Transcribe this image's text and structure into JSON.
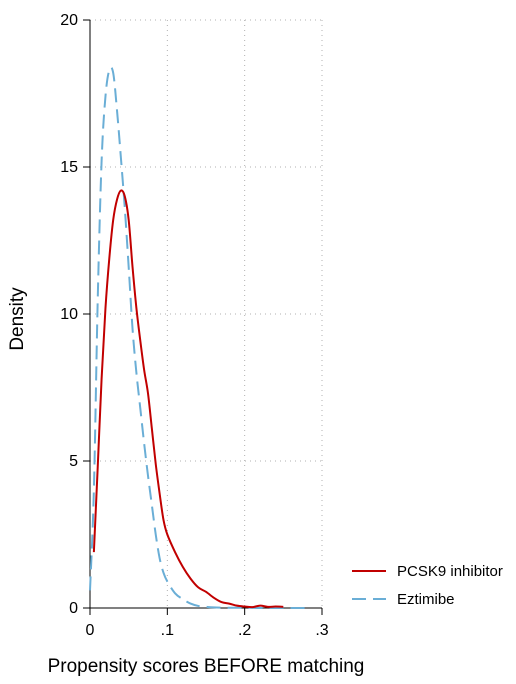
{
  "chart_data": {
    "type": "line",
    "title": "",
    "xlabel": "Propensity scores BEFORE matching",
    "ylabel": "Density",
    "xlim": [
      0,
      0.3
    ],
    "ylim": [
      0,
      20
    ],
    "x_ticks": [
      {
        "value": 0,
        "label": "0"
      },
      {
        "value": 0.1,
        "label": ".1"
      },
      {
        "value": 0.2,
        "label": ".2"
      },
      {
        "value": 0.3,
        "label": ".3"
      }
    ],
    "y_ticks": [
      {
        "value": 0,
        "label": "0"
      },
      {
        "value": 5,
        "label": "5"
      },
      {
        "value": 10,
        "label": "10"
      },
      {
        "value": 15,
        "label": "15"
      },
      {
        "value": 20,
        "label": "20"
      }
    ],
    "grid": true,
    "legend_position": "bottom-right",
    "series": [
      {
        "name": "PCSK9 inhibitor",
        "color": "#c10000",
        "style": "solid",
        "x": [
          0.005,
          0.01,
          0.015,
          0.02,
          0.025,
          0.03,
          0.035,
          0.04,
          0.045,
          0.05,
          0.055,
          0.06,
          0.065,
          0.07,
          0.075,
          0.08,
          0.085,
          0.09,
          0.095,
          0.1,
          0.11,
          0.12,
          0.13,
          0.14,
          0.15,
          0.16,
          0.17,
          0.18,
          0.19,
          0.2,
          0.21,
          0.22,
          0.23,
          0.24,
          0.25
        ],
        "y": [
          1.9,
          4.8,
          7.8,
          10.2,
          11.9,
          13.2,
          13.9,
          14.2,
          14.0,
          13.2,
          11.6,
          10.2,
          9.1,
          8.1,
          7.3,
          6.1,
          4.9,
          3.9,
          3.0,
          2.5,
          1.9,
          1.4,
          1.0,
          0.7,
          0.55,
          0.35,
          0.2,
          0.15,
          0.08,
          0.05,
          0.03,
          0.08,
          0.04,
          0.05,
          0.04
        ]
      },
      {
        "name": "Eztimibe",
        "color": "#6aaed6",
        "style": "dashed",
        "x": [
          0.0,
          0.005,
          0.01,
          0.015,
          0.02,
          0.025,
          0.03,
          0.035,
          0.04,
          0.045,
          0.05,
          0.055,
          0.06,
          0.065,
          0.07,
          0.075,
          0.08,
          0.085,
          0.09,
          0.095,
          0.1,
          0.11,
          0.12,
          0.13,
          0.14,
          0.15,
          0.16,
          0.18,
          0.2,
          0.22,
          0.24,
          0.26,
          0.28
        ],
        "y": [
          0.6,
          4.0,
          10.5,
          15.2,
          17.4,
          18.3,
          18.2,
          16.9,
          15.3,
          13.6,
          11.6,
          9.5,
          8.0,
          6.8,
          5.6,
          4.5,
          3.5,
          2.5,
          1.7,
          1.2,
          0.9,
          0.5,
          0.3,
          0.15,
          0.07,
          0.04,
          0.02,
          0.01,
          0.01,
          0.0,
          0.0,
          0.0,
          0.0
        ]
      }
    ]
  }
}
